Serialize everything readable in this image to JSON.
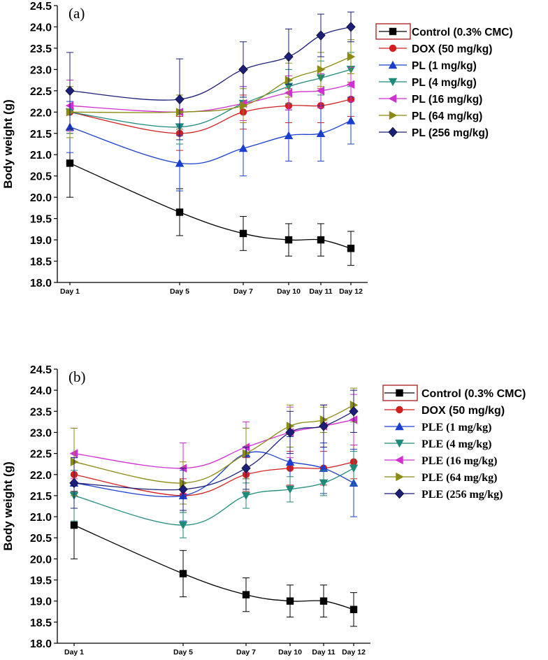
{
  "chart_data": [
    {
      "type": "line",
      "panel_label": "(a)",
      "ylabel": "Body weight (g)",
      "xlabel": "",
      "categories": [
        "Day 1",
        "Day 5",
        "Day 7",
        "Day 10",
        "Day 11",
        "Day 12"
      ],
      "x_days": [
        1,
        5,
        7,
        10,
        11,
        12
      ],
      "ylim": [
        18.0,
        24.5
      ],
      "yticks": [
        "18.0",
        "18.5",
        "19.0",
        "19.5",
        "20.0",
        "20.5",
        "21.0",
        "21.5",
        "22.0",
        "22.5",
        "23.0",
        "23.5",
        "24.0",
        "24.5"
      ],
      "legend_position": "top-right",
      "series": [
        {
          "name": "Control (0.3% CMC)",
          "color": "#000000",
          "marker": "square",
          "values": [
            20.8,
            19.65,
            19.15,
            19.0,
            19.0,
            18.8
          ],
          "errors": [
            0.8,
            0.55,
            0.4,
            0.38,
            0.38,
            0.4
          ]
        },
        {
          "name": "DOX (50 mg/kg)",
          "color": "#d21f1f",
          "marker": "circle",
          "values": [
            22.0,
            21.5,
            22.0,
            22.15,
            22.15,
            22.3
          ],
          "errors": [
            0.5,
            0.4,
            0.4,
            0.4,
            0.4,
            0.4
          ]
        },
        {
          "name": "PL (1 mg/kg)",
          "color": "#1a3fcf",
          "marker": "triangle-up",
          "values": [
            21.65,
            20.8,
            21.15,
            21.45,
            21.5,
            21.8
          ],
          "errors": [
            0.6,
            0.65,
            0.65,
            0.6,
            0.65,
            0.55
          ]
        },
        {
          "name": "PL (4 mg/kg)",
          "color": "#1d8a7a",
          "marker": "triangle-down",
          "values": [
            22.0,
            21.65,
            22.2,
            22.6,
            22.8,
            23.0
          ],
          "errors": [
            0.5,
            0.4,
            0.4,
            0.4,
            0.4,
            0.4
          ]
        },
        {
          "name": "PL (16 mg/kg)",
          "color": "#d12fd1",
          "marker": "triangle-left",
          "values": [
            22.15,
            22.0,
            22.2,
            22.45,
            22.5,
            22.65
          ],
          "errors": [
            0.6,
            0.4,
            0.4,
            0.4,
            0.4,
            0.4
          ]
        },
        {
          "name": "PL (64 mg/kg)",
          "color": "#8b8b12",
          "marker": "triangle-right",
          "values": [
            22.0,
            22.0,
            22.15,
            22.75,
            23.0,
            23.3
          ],
          "errors": [
            0.6,
            0.4,
            0.4,
            0.4,
            0.4,
            0.4
          ]
        },
        {
          "name": "PL (256 mg/kg)",
          "color": "#1c1f7a",
          "marker": "diamond",
          "values": [
            22.5,
            22.3,
            23.0,
            23.3,
            23.8,
            24.0
          ],
          "errors": [
            0.9,
            0.95,
            0.65,
            0.65,
            0.5,
            0.35
          ]
        }
      ]
    },
    {
      "type": "line",
      "panel_label": "(b)",
      "ylabel": "Body weight (g)",
      "xlabel": "",
      "categories": [
        "Day 1",
        "Day 5",
        "Day 7",
        "Day 10",
        "Day 11",
        "Day 12"
      ],
      "x_days": [
        1,
        5,
        7,
        10,
        11,
        12
      ],
      "ylim": [
        18.0,
        24.5
      ],
      "yticks": [
        "18.0",
        "18.5",
        "19.0",
        "19.5",
        "20.0",
        "20.5",
        "21.0",
        "21.5",
        "22.0",
        "22.5",
        "23.0",
        "23.5",
        "24.0",
        "24.5"
      ],
      "legend_position": "top-right",
      "series": [
        {
          "name": "Control (0.3% CMC)",
          "color": "#000000",
          "marker": "square",
          "values": [
            20.8,
            19.65,
            19.15,
            19.0,
            19.0,
            18.8
          ],
          "errors": [
            0.8,
            0.55,
            0.4,
            0.38,
            0.38,
            0.4
          ]
        },
        {
          "name": "DOX (50 mg/kg)",
          "color": "#d21f1f",
          "marker": "circle",
          "values": [
            22.0,
            21.5,
            22.0,
            22.15,
            22.15,
            22.3
          ],
          "errors": [
            0.5,
            0.4,
            0.4,
            0.4,
            0.4,
            0.4
          ]
        },
        {
          "name": "PLE  (1 mg/kg)",
          "color": "#1a3fcf",
          "marker": "triangle-up",
          "values": [
            21.8,
            21.5,
            22.5,
            22.3,
            22.15,
            21.8
          ],
          "errors": [
            0.6,
            0.6,
            0.6,
            0.6,
            0.6,
            0.8
          ]
        },
        {
          "name": "PLE  (4 mg/kg)",
          "color": "#1d8a7a",
          "marker": "triangle-down",
          "values": [
            21.5,
            20.8,
            21.5,
            21.65,
            21.8,
            22.15
          ],
          "errors": [
            0.6,
            0.3,
            0.3,
            0.3,
            0.3,
            0.4
          ]
        },
        {
          "name": "PLE  (16 mg/kg)",
          "color": "#d12fd1",
          "marker": "triangle-left",
          "values": [
            22.5,
            22.15,
            22.65,
            23.0,
            23.15,
            23.3
          ],
          "errors": [
            0.6,
            0.6,
            0.6,
            0.6,
            0.5,
            0.6
          ]
        },
        {
          "name": "PLE  (64 mg/kg)",
          "color": "#8b8b12",
          "marker": "triangle-right",
          "values": [
            22.3,
            21.8,
            22.5,
            23.15,
            23.3,
            23.65
          ],
          "errors": [
            0.8,
            0.5,
            0.6,
            0.5,
            0.3,
            0.4
          ]
        },
        {
          "name": "PLE  (256 mg/kg)",
          "color": "#1c1f7a",
          "marker": "diamond",
          "values": [
            21.8,
            21.65,
            22.15,
            23.0,
            23.15,
            23.5
          ],
          "errors": [
            0.6,
            0.5,
            0.5,
            0.5,
            0.5,
            0.5
          ]
        }
      ]
    }
  ]
}
